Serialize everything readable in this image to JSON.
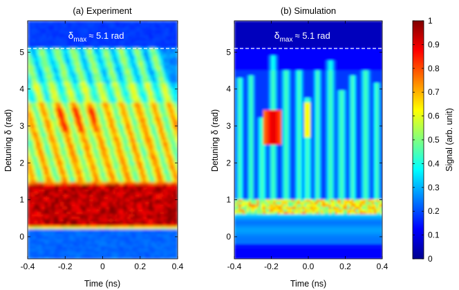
{
  "chart_data": [
    {
      "type": "heatmap",
      "title": "(a) Experiment",
      "xlabel": "Time (ns)",
      "ylabel": "Detuning δ (rad)",
      "xlim": [
        -0.4,
        0.4
      ],
      "ylim": [
        -0.6,
        5.85
      ],
      "xticks": [
        "-0.4",
        "-0.2",
        "0",
        "0.2",
        "0.4"
      ],
      "yticks": [
        "0",
        "1",
        "2",
        "3",
        "4",
        "5"
      ],
      "annotation": {
        "text_main": "δ",
        "text_sub": "max",
        "text_rest": "≈ 5.1 rad",
        "value": 5.1
      },
      "colormap": "jet",
      "clim": [
        0,
        1
      ]
    },
    {
      "type": "heatmap",
      "title": "(b) Simulation",
      "xlabel": "Time (ns)",
      "ylabel": "Detuning δ (rad)",
      "xlim": [
        -0.4,
        0.4
      ],
      "ylim": [
        -0.6,
        5.85
      ],
      "xticks": [
        "-0.4",
        "-0.2",
        "0.0",
        "0.2",
        "0.4"
      ],
      "yticks": [
        "0",
        "1",
        "2",
        "3",
        "4",
        "5"
      ],
      "annotation": {
        "text_main": "δ",
        "text_sub": "max",
        "text_rest": "≈ 5.1 rad",
        "value": 5.1
      },
      "colormap": "jet",
      "clim": [
        0,
        1
      ]
    }
  ],
  "colorbar": {
    "label": "Signal (arb. unit)",
    "ticks": [
      "0",
      "0.1",
      "0.2",
      "0.3",
      "0.4",
      "0.5",
      "0.6",
      "0.7",
      "0.8",
      "0.9",
      "1"
    ],
    "colors": [
      "#00008f",
      "#0000ff",
      "#00ffff",
      "#ffff00",
      "#ff0000",
      "#800000"
    ]
  }
}
